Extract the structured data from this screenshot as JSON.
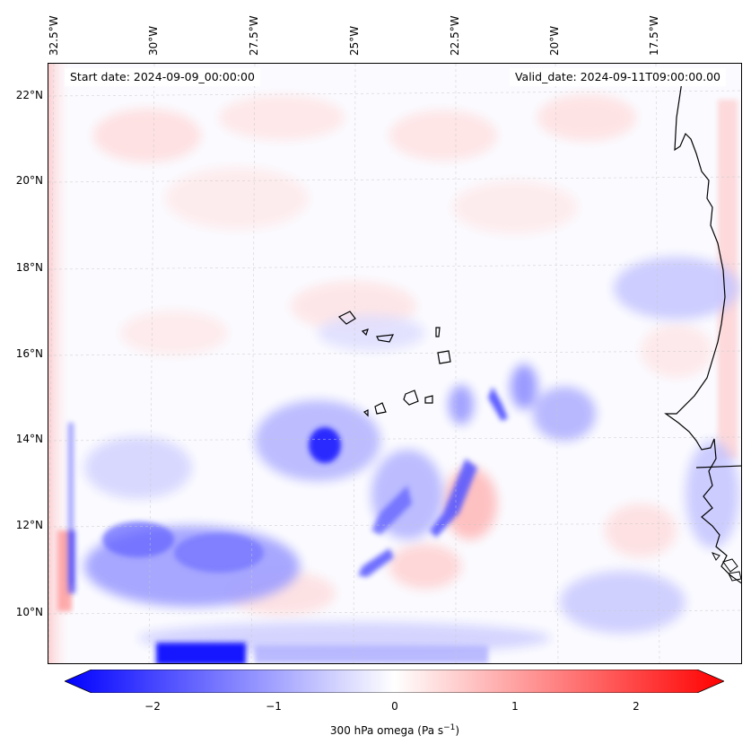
{
  "map": {
    "title_left": "Start date: 2024-09-09_00:00:00",
    "title_right": "Valid_date: 2024-09-11T09:00:00.00",
    "lon_labels": [
      "32.5°W",
      "30°W",
      "27.5°W",
      "25°W",
      "22.5°W",
      "20°W",
      "17.5°W"
    ],
    "lat_labels": [
      "22°N",
      "20°N",
      "18°N",
      "16°N",
      "14°N",
      "12°N",
      "10°N"
    ],
    "extent": {
      "lon_min": -32.8,
      "lon_max": -15.5,
      "lat_min": 8.9,
      "lat_max": 22.8
    },
    "field": "300 hPa omega",
    "colormap": "bwr"
  },
  "colorbar": {
    "ticks": [
      "−2",
      "−1",
      "0",
      "1",
      "2"
    ],
    "label": "300 hPa omega (Pa s",
    "label_exp": "−1",
    "label_close": ")",
    "min": -2.7,
    "max": 2.7,
    "color_min": "#0000ff",
    "color_mid": "#ffffff",
    "color_max": "#ff0000"
  }
}
